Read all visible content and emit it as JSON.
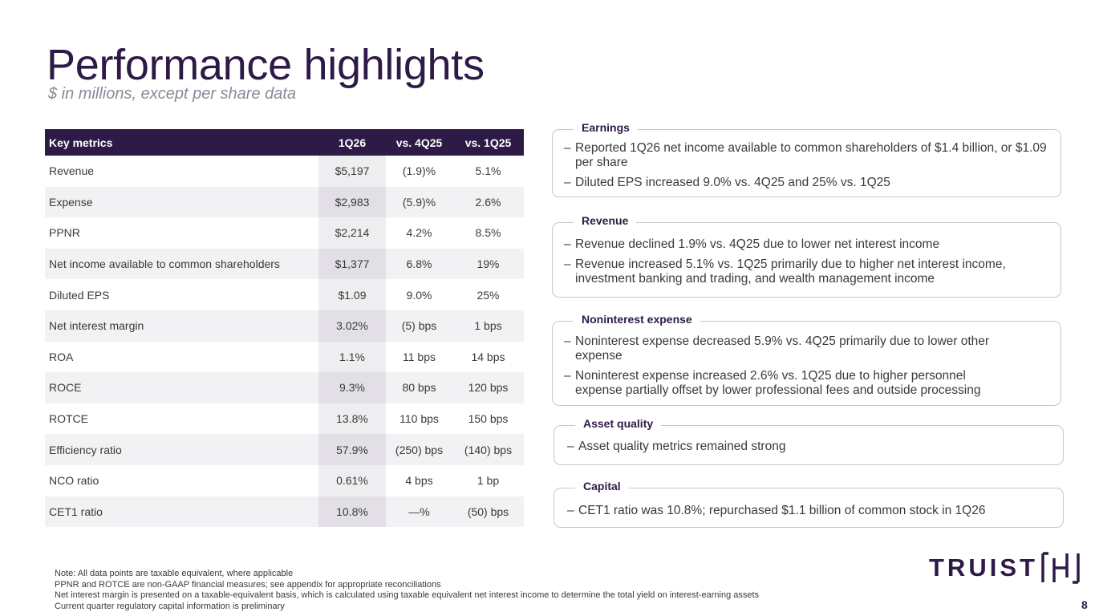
{
  "title": "Performance highlights",
  "subtitle": "$ in millions, except per share data",
  "table": {
    "headers": [
      "Key metrics",
      "1Q26",
      "vs. 4Q25",
      "vs. 1Q25"
    ],
    "rows": [
      [
        "Revenue",
        "$5,197",
        "(1.9)%",
        "5.1%"
      ],
      [
        "Expense",
        "$2,983",
        "(5.9)%",
        "2.6%"
      ],
      [
        "PPNR",
        "$2,214",
        "4.2%",
        "8.5%"
      ],
      [
        "Net income available to common shareholders",
        "$1,377",
        "6.8%",
        "19%"
      ],
      [
        "Diluted EPS",
        "$1.09",
        "9.0%",
        "25%"
      ],
      [
        "Net interest margin",
        "3.02%",
        "(5) bps",
        "1 bps"
      ],
      [
        "ROA",
        "1.1%",
        "11 bps",
        "14 bps"
      ],
      [
        "ROCE",
        "9.3%",
        "80 bps",
        "120 bps"
      ],
      [
        "ROTCE",
        "13.8%",
        "110 bps",
        "150 bps"
      ],
      [
        "Efficiency ratio",
        "57.9%",
        "(250) bps",
        "(140) bps"
      ],
      [
        "NCO ratio",
        "0.61%",
        "4 bps",
        "1 bp"
      ],
      [
        "CET1 ratio",
        "10.8%",
        "—%",
        "(50) bps"
      ]
    ]
  },
  "dash": "–",
  "sections": {
    "earnings": {
      "title": "Earnings",
      "bullets": [
        "Reported 1Q26 net income available to common shareholders of $1.4 billion, or $1.09 per share",
        "Diluted EPS increased 9.0% vs. 4Q25 and 25% vs. 1Q25"
      ]
    },
    "revenue": {
      "title": "Revenue",
      "bullets": [
        "Revenue declined 1.9% vs. 4Q25 due to lower net interest income",
        "Revenue increased 5.1% vs. 1Q25 primarily due to higher net interest income, investment banking and trading, and wealth management income"
      ]
    },
    "expense": {
      "title": "Noninterest expense",
      "bullets": [
        "Noninterest expense decreased 5.9% vs. 4Q25 primarily due to lower other expense",
        "Noninterest expense increased 2.6% vs. 1Q25 due to higher personnel expense partially offset by lower professional fees and outside processing"
      ]
    },
    "asset_quality": {
      "title": "Asset quality",
      "bullets": [
        "Asset quality metrics remained strong"
      ]
    },
    "capital": {
      "title": "Capital",
      "bullets": [
        "CET1 ratio was 10.8%; repurchased $1.1 billion of common stock in 1Q26"
      ]
    }
  },
  "notes": [
    "Note: All data points are taxable equivalent, where applicable",
    "PPNR and ROTCE are non-GAAP financial measures; see appendix for appropriate reconciliations",
    "Net interest margin is presented on a taxable-equivalent basis, which is calculated using taxable equivalent net interest income to determine the total yield on interest-earning assets",
    "Current quarter regulatory capital information is preliminary"
  ],
  "logo_text": "TRUIST",
  "page_number": "8",
  "colors": {
    "brand": "#2e1a47",
    "border": "#c9c5cf",
    "row_alt": "#f2f1f3"
  }
}
